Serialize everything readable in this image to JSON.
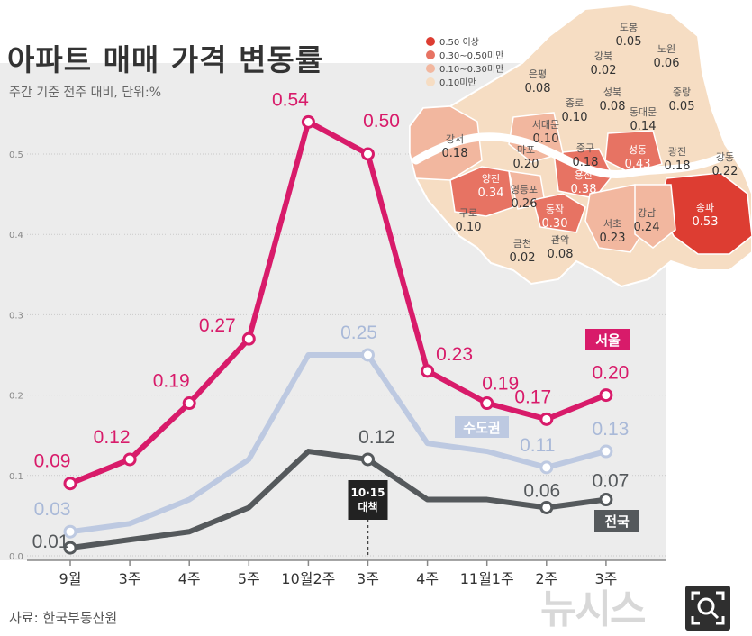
{
  "title": "아파트 매매 가격 변동률",
  "subtitle": "주간 기준 전주 대비, 단위:%",
  "source": "자료: 한국부동산원",
  "watermark": "뉴시스",
  "colors": {
    "seoul": "#d81b6a",
    "capital": "#bdc9e1",
    "national": "#55595c",
    "plot_bg": "#ececec",
    "grid": "#c9c9c9"
  },
  "chart_data": {
    "type": "line",
    "categories": [
      "9월",
      "3주",
      "4주",
      "5주",
      "10월2주",
      "3주",
      "4주",
      "11월1주",
      "2주",
      "3주"
    ],
    "ylim": [
      0,
      0.6
    ],
    "yticks": [
      "0.0",
      "0.1",
      "0.2",
      "0.3",
      "0.4",
      "0.5"
    ],
    "series": [
      {
        "name": "서울",
        "key": "seoul",
        "values": [
          0.09,
          0.12,
          0.19,
          0.27,
          0.54,
          0.5,
          0.23,
          0.19,
          0.17,
          0.2
        ],
        "labels": [
          "0.09",
          "0.12",
          "0.19",
          "0.27",
          "0.54",
          "0.50",
          "0.23",
          "0.19",
          "0.17",
          "0.20"
        ],
        "label_idx": [
          0,
          1,
          2,
          3,
          4,
          5,
          6,
          7,
          8,
          9
        ],
        "legend": "서울"
      },
      {
        "name": "수도권",
        "key": "capital",
        "values": [
          0.03,
          0.04,
          0.07,
          0.12,
          0.25,
          0.25,
          0.14,
          0.13,
          0.11,
          0.13
        ],
        "labels": [
          "0.03",
          "",
          "",
          "",
          "",
          "0.25",
          "",
          "",
          "0.11",
          "0.13"
        ],
        "label_idx": [
          0,
          5,
          8,
          9
        ],
        "legend": "수도권"
      },
      {
        "name": "전국",
        "key": "national",
        "values": [
          0.01,
          0.02,
          0.03,
          0.06,
          0.13,
          0.12,
          0.07,
          0.07,
          0.06,
          0.07
        ],
        "labels": [
          "0.01",
          "",
          "",
          "",
          "",
          "0.12",
          "",
          "",
          "0.06",
          "0.07"
        ],
        "label_idx": [
          0,
          5,
          8,
          9
        ],
        "legend": "전국"
      }
    ],
    "annotation": {
      "lines": [
        "10·15",
        "대책"
      ],
      "at_category": 5
    }
  },
  "map": {
    "legend": [
      "0.50 이상",
      "0.30~0.50미만",
      "0.10~0.30미만",
      "0.10미만"
    ],
    "districts": [
      {
        "name": "도봉",
        "value": "0.05"
      },
      {
        "name": "강북",
        "value": "0.02"
      },
      {
        "name": "노원",
        "value": "0.06"
      },
      {
        "name": "은평",
        "value": "0.08"
      },
      {
        "name": "성북",
        "value": "0.08"
      },
      {
        "name": "중랑",
        "value": "0.05"
      },
      {
        "name": "종로",
        "value": "0.10"
      },
      {
        "name": "동대문",
        "value": "0.14"
      },
      {
        "name": "서대문",
        "value": "0.10"
      },
      {
        "name": "강서",
        "value": "0.18"
      },
      {
        "name": "마포",
        "value": "0.20"
      },
      {
        "name": "중구",
        "value": "0.18"
      },
      {
        "name": "성동",
        "value": "0.43"
      },
      {
        "name": "광진",
        "value": "0.18"
      },
      {
        "name": "강동",
        "value": "0.22"
      },
      {
        "name": "양천",
        "value": "0.34"
      },
      {
        "name": "영등포",
        "value": "0.26"
      },
      {
        "name": "용산",
        "value": "0.38"
      },
      {
        "name": "동작",
        "value": "0.30"
      },
      {
        "name": "송파",
        "value": "0.53"
      },
      {
        "name": "구로",
        "value": "0.10"
      },
      {
        "name": "강남",
        "value": "0.24"
      },
      {
        "name": "서초",
        "value": "0.23"
      },
      {
        "name": "금천",
        "value": "0.02"
      },
      {
        "name": "관악",
        "value": "0.08"
      }
    ]
  }
}
